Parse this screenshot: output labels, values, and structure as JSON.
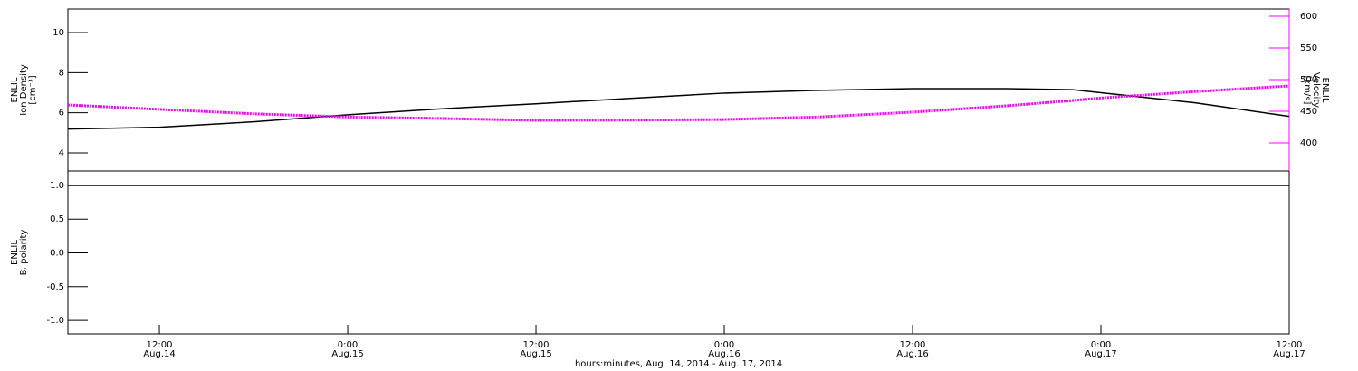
{
  "chart_data": [
    {
      "type": "line",
      "ylabel": [
        "ENLIL",
        "Ion Density",
        "[cm⁻³]"
      ],
      "y2label": [
        "ENLIL",
        "Velocity",
        "[km/s]"
      ],
      "x": [
        6.17,
        12,
        18,
        24,
        30,
        36,
        42,
        48,
        54,
        60,
        66,
        70.2,
        72,
        78,
        84
      ],
      "xlim": [
        6.17,
        84
      ],
      "ylim": [
        3.1,
        11.17
      ],
      "yticks": [
        4,
        6,
        8,
        10
      ],
      "y2lim": [
        355.7,
        611.4
      ],
      "y2ticks": [
        400,
        450,
        500,
        550,
        600
      ],
      "series": [
        {
          "name": "Ion Density",
          "color": "#000000",
          "values": [
            5.19,
            5.28,
            5.55,
            5.9,
            6.2,
            6.45,
            6.72,
            6.98,
            7.12,
            7.2,
            7.2,
            7.15,
            7.0,
            6.5,
            5.82
          ]
        },
        {
          "name": "Velocity",
          "color": "#ff00ff",
          "axis": "y2",
          "values": [
            460,
            453,
            446,
            441,
            438.6,
            435.7,
            436,
            437,
            441,
            448.6,
            458.6,
            467,
            471,
            481,
            490
          ]
        }
      ]
    },
    {
      "type": "line",
      "ylabel": [
        "ENLIL",
        "Bᵣ polarity"
      ],
      "xlabel": "hours:minutes, Aug. 14, 2014 - Aug. 17, 2014",
      "x": [
        6.17,
        12,
        18,
        24,
        30,
        36,
        42,
        48,
        54,
        60,
        66,
        72,
        78,
        84
      ],
      "xlim": [
        6.17,
        84
      ],
      "xticks": [
        {
          "value": 12,
          "label": "12:00",
          "sublabel": "Aug.14"
        },
        {
          "value": 24,
          "label": "0:00",
          "sublabel": "Aug.15"
        },
        {
          "value": 36,
          "label": "12:00",
          "sublabel": "Aug.15"
        },
        {
          "value": 48,
          "label": "0:00",
          "sublabel": "Aug.16"
        },
        {
          "value": 60,
          "label": "12:00",
          "sublabel": "Aug.16"
        },
        {
          "value": 72,
          "label": "0:00",
          "sublabel": "Aug.17"
        },
        {
          "value": 84,
          "label": "12:00",
          "sublabel": "Aug.17"
        }
      ],
      "ylim": [
        -1.2,
        1.214
      ],
      "yticks": [
        {
          "value": -1,
          "label": "-1.0"
        },
        -0.5,
        {
          "value": 0,
          "label": "0.0"
        },
        0.5,
        {
          "value": 1,
          "label": "1.0"
        }
      ],
      "series": [
        {
          "name": "Br polarity",
          "color": "#000000",
          "values": [
            1,
            1,
            1,
            1,
            1,
            1,
            1,
            1,
            1,
            1,
            1,
            1,
            1,
            1
          ]
        }
      ]
    }
  ]
}
